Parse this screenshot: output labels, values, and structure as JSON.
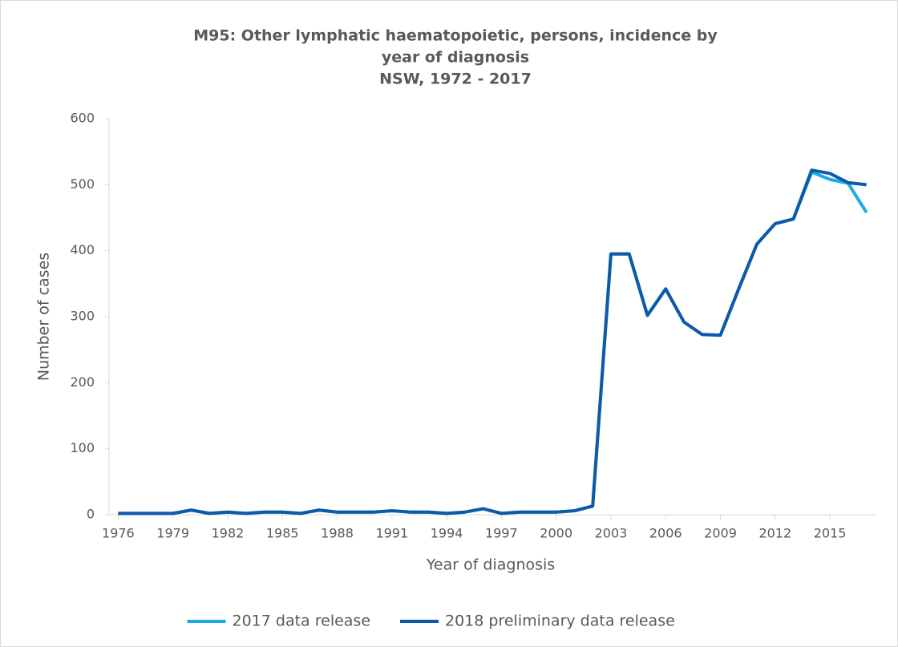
{
  "chart_data": {
    "type": "line",
    "title": [
      "M95: Other lymphatic haematopoietic, persons, incidence by",
      "year of diagnosis",
      "NSW, 1972 - 2017"
    ],
    "x_label": "Year of diagnosis",
    "y_label": "Number of cases",
    "x": [
      1976,
      1977,
      1978,
      1979,
      1980,
      1981,
      1982,
      1983,
      1984,
      1985,
      1986,
      1987,
      1988,
      1989,
      1990,
      1991,
      1992,
      1993,
      1994,
      1995,
      1996,
      1997,
      1998,
      1999,
      2000,
      2001,
      2002,
      2003,
      2004,
      2005,
      2006,
      2007,
      2008,
      2009,
      2010,
      2011,
      2012,
      2013,
      2014,
      2015,
      2016,
      2017
    ],
    "series": [
      {
        "name": "2017 data release",
        "color": "#1aace6",
        "values": [
          2,
          2,
          2,
          2,
          7,
          2,
          4,
          2,
          4,
          4,
          2,
          7,
          4,
          4,
          4,
          6,
          4,
          4,
          2,
          4,
          9,
          2,
          4,
          4,
          4,
          6,
          13,
          395,
          395,
          302,
          342,
          292,
          273,
          272,
          342,
          410,
          441,
          448,
          519,
          508,
          502,
          458
        ]
      },
      {
        "name": "2018 preliminary data release",
        "color": "#0e5aa7",
        "values": [
          2,
          2,
          2,
          2,
          7,
          2,
          4,
          2,
          4,
          4,
          2,
          7,
          4,
          4,
          4,
          6,
          4,
          4,
          2,
          4,
          9,
          2,
          4,
          4,
          4,
          6,
          13,
          395,
          395,
          302,
          342,
          292,
          273,
          272,
          342,
          410,
          441,
          448,
          522,
          517,
          503,
          500
        ]
      }
    ],
    "xlim": [
      1975.5,
      2017.5
    ],
    "xticks": [
      1976,
      1979,
      1982,
      1985,
      1988,
      1991,
      1994,
      1997,
      2000,
      2003,
      2006,
      2009,
      2012,
      2015
    ],
    "ylim": [
      0,
      600
    ],
    "yticks": [
      0,
      100,
      200,
      300,
      400,
      500,
      600
    ],
    "grid": false,
    "legend": "bottom"
  }
}
